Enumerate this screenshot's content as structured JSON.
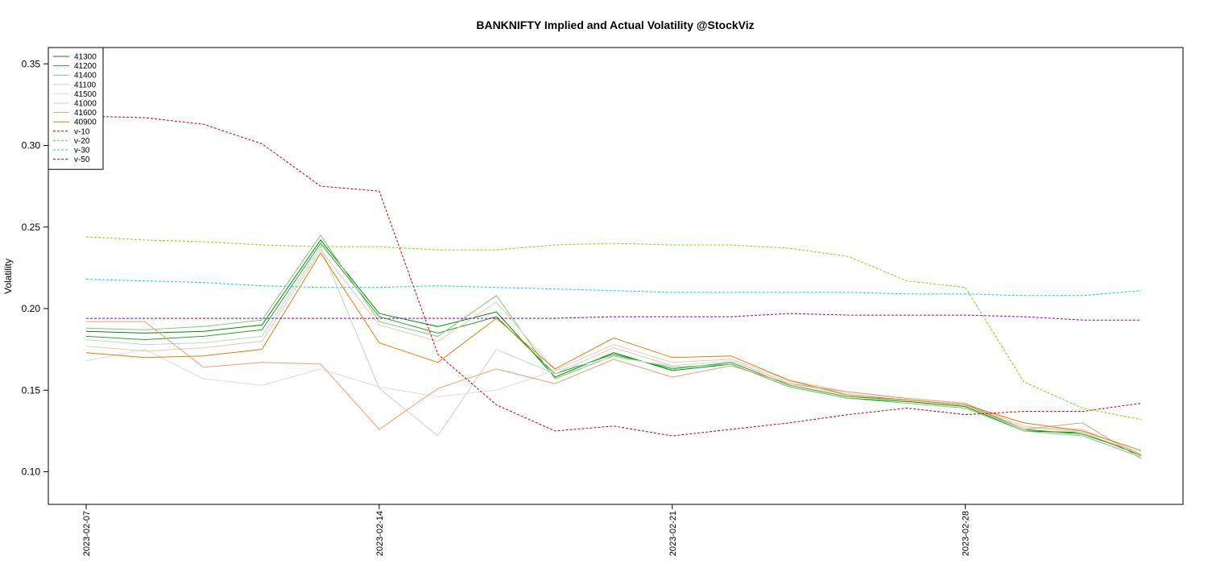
{
  "chart_data": {
    "type": "line",
    "title": "BANKNIFTY Implied and Actual Volatility @StockViz",
    "xlabel": "",
    "ylabel": "Volatility",
    "x": [
      "2023-02-07",
      "2023-02-08",
      "2023-02-09",
      "2023-02-10",
      "2023-02-13",
      "2023-02-14",
      "2023-02-15",
      "2023-02-16",
      "2023-02-17",
      "2023-02-20",
      "2023-02-21",
      "2023-02-22",
      "2023-02-23",
      "2023-02-24",
      "2023-02-27",
      "2023-02-28",
      "2023-03-01",
      "2023-03-02",
      "2023-03-03"
    ],
    "x_tick_labels": [
      "2023-02-07",
      "2023-02-14",
      "2023-02-21",
      "2023-02-28"
    ],
    "ylim": [
      0.08,
      0.36
    ],
    "y_ticks": [
      0.1,
      0.15,
      0.2,
      0.25,
      0.3,
      0.35
    ],
    "y_tick_labels": [
      "0.10",
      "0.15",
      "0.20",
      "0.25",
      "0.30",
      "0.35"
    ],
    "grid": false,
    "legend_position": "top-left",
    "series": [
      {
        "name": "41300",
        "color": "#008c00",
        "dash": "",
        "values": [
          0.186,
          0.185,
          0.186,
          0.19,
          0.242,
          0.197,
          0.189,
          0.198,
          0.158,
          0.173,
          0.162,
          0.166,
          0.152,
          0.145,
          0.143,
          0.14,
          0.125,
          0.124,
          0.11
        ]
      },
      {
        "name": "41200",
        "color": "#2ba32b",
        "dash": "",
        "values": [
          0.183,
          0.181,
          0.183,
          0.187,
          0.24,
          0.195,
          0.185,
          0.195,
          0.16,
          0.172,
          0.163,
          0.167,
          0.153,
          0.146,
          0.144,
          0.141,
          0.126,
          0.123,
          0.111
        ]
      },
      {
        "name": "41400",
        "color": "#7fc87f",
        "dash": "",
        "values": [
          0.188,
          0.187,
          0.189,
          0.193,
          0.245,
          0.192,
          0.183,
          0.208,
          0.157,
          0.171,
          0.164,
          0.166,
          0.152,
          0.145,
          0.142,
          0.139,
          0.125,
          0.122,
          0.109
        ]
      },
      {
        "name": "41100",
        "color": "#c8d2c4",
        "dash": "",
        "values": [
          0.181,
          0.178,
          0.179,
          0.183,
          0.238,
          0.151,
          0.122,
          0.175,
          0.16,
          0.176,
          0.165,
          0.168,
          0.154,
          0.147,
          0.144,
          0.141,
          0.127,
          0.126,
          0.111
        ]
      },
      {
        "name": "41500",
        "color": "#dcdcdc",
        "dash": "",
        "values": [
          0.168,
          0.175,
          0.157,
          0.153,
          0.163,
          0.152,
          0.146,
          0.15,
          0.162,
          0.17,
          0.165,
          0.168,
          0.155,
          0.148,
          0.145,
          0.142,
          0.127,
          0.125,
          0.112
        ]
      },
      {
        "name": "41000",
        "color": "#e8c8b8",
        "dash": "",
        "values": [
          0.177,
          0.174,
          0.176,
          0.18,
          0.236,
          0.19,
          0.18,
          0.204,
          0.162,
          0.178,
          0.167,
          0.169,
          0.156,
          0.149,
          0.145,
          0.142,
          0.128,
          0.124,
          0.111
        ]
      },
      {
        "name": "41600",
        "color": "#e8a078",
        "dash": "",
        "values": [
          0.192,
          0.192,
          0.164,
          0.167,
          0.166,
          0.126,
          0.151,
          0.163,
          0.154,
          0.169,
          0.158,
          0.165,
          0.154,
          0.149,
          0.145,
          0.142,
          0.126,
          0.13,
          0.108
        ]
      },
      {
        "name": "40900",
        "color": "#e08000",
        "dash": "",
        "values": [
          0.173,
          0.17,
          0.171,
          0.175,
          0.234,
          0.179,
          0.167,
          0.194,
          0.163,
          0.182,
          0.17,
          0.171,
          0.156,
          0.147,
          0.144,
          0.141,
          0.13,
          0.125,
          0.113
        ]
      },
      {
        "name": "v-10",
        "color": "#cc0000",
        "dash": "3,2",
        "values": [
          0.318,
          0.317,
          0.313,
          0.301,
          0.275,
          0.272,
          0.172,
          0.141,
          0.125,
          0.128,
          0.122,
          0.126,
          0.13,
          0.135,
          0.139,
          0.135,
          0.137,
          0.137,
          0.142
        ]
      },
      {
        "name": "v-20",
        "color": "#80d800",
        "dash": "3,2",
        "values": [
          0.244,
          0.242,
          0.241,
          0.239,
          0.238,
          0.238,
          0.236,
          0.236,
          0.239,
          0.24,
          0.239,
          0.239,
          0.237,
          0.232,
          0.217,
          0.213,
          0.155,
          0.139,
          0.132
        ]
      },
      {
        "name": "v-30",
        "color": "#00d8d8",
        "dash": "3,2",
        "values": [
          0.218,
          0.217,
          0.216,
          0.214,
          0.213,
          0.213,
          0.214,
          0.213,
          0.212,
          0.211,
          0.21,
          0.21,
          0.21,
          0.21,
          0.209,
          0.209,
          0.208,
          0.208,
          0.211
        ]
      },
      {
        "name": "v-50",
        "color": "#8000d0",
        "dash": "3,2",
        "values": [
          0.194,
          0.194,
          0.194,
          0.194,
          0.194,
          0.194,
          0.194,
          0.194,
          0.194,
          0.195,
          0.195,
          0.195,
          0.197,
          0.196,
          0.196,
          0.196,
          0.195,
          0.193,
          0.193
        ]
      }
    ]
  }
}
